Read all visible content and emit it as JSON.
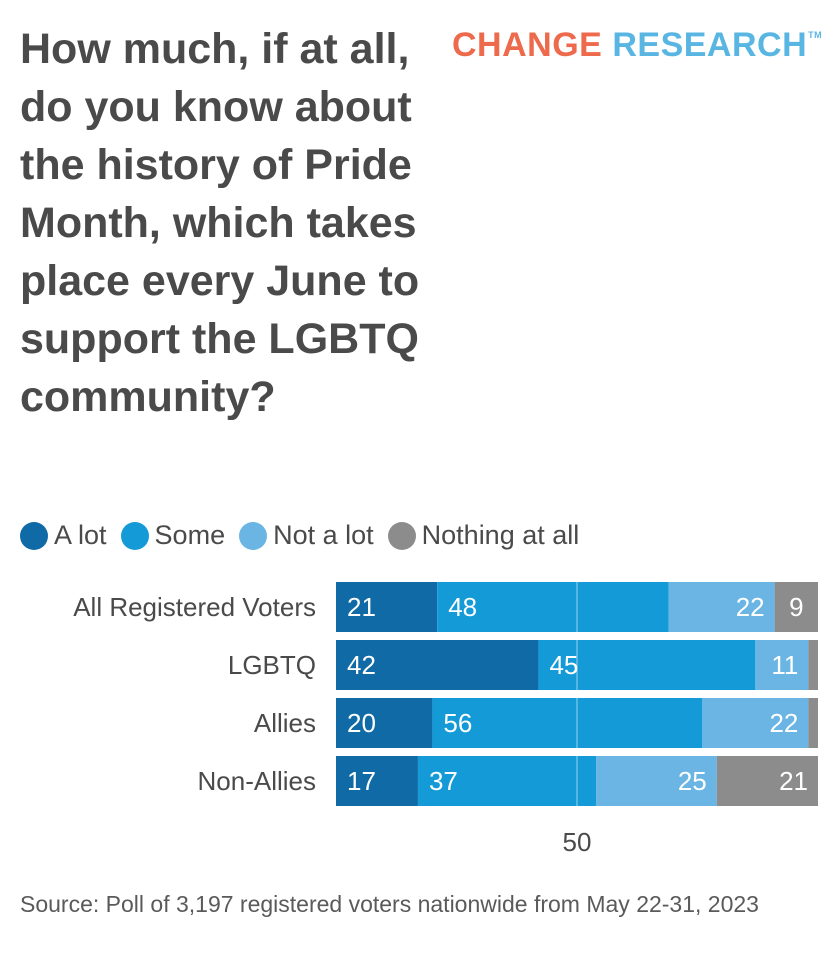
{
  "title": "How much, if at all, do you know about the history of Pride Month, which takes place every June to support the LGBTQ community?",
  "logo": {
    "part1": "CHANGE",
    "part2": "RESEARCH",
    "tm": "TM"
  },
  "source": "Source: Poll of 3,197 registered voters nationwide from May 22-31, 2023",
  "colors": {
    "a_lot": "#0f6aa6",
    "some": "#149ad6",
    "not_a_lot": "#6ab5e4",
    "nothing": "#8c8c8c"
  },
  "chart_data": {
    "type": "bar",
    "orientation": "horizontal",
    "stacked": true,
    "categories": [
      "All Registered Voters",
      "LGBTQ",
      "Allies",
      "Non-Allies"
    ],
    "series": [
      {
        "name": "A lot",
        "values": [
          21,
          42,
          20,
          17
        ]
      },
      {
        "name": "Some",
        "values": [
          48,
          45,
          56,
          37
        ]
      },
      {
        "name": "Not a lot",
        "values": [
          22,
          11,
          22,
          25
        ]
      },
      {
        "name": "Nothing at all",
        "values": [
          9,
          2,
          2,
          21
        ]
      }
    ],
    "data_labels": [
      [
        "21",
        "48",
        "22",
        "9"
      ],
      [
        "42",
        "45",
        "11",
        ""
      ],
      [
        "20",
        "56",
        "22",
        ""
      ],
      [
        "17",
        "37",
        "25",
        "21"
      ]
    ],
    "xlim": [
      0,
      100
    ],
    "x_ticks": [
      50
    ],
    "x_tick_labels": [
      "50"
    ],
    "legend_position": "top-left"
  }
}
